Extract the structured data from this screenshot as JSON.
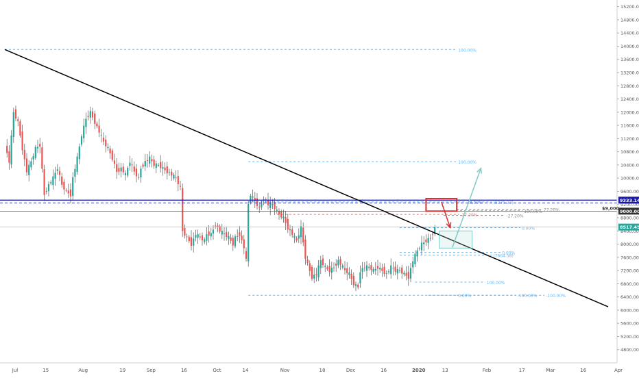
{
  "chart_data": {
    "type": "candlestick",
    "title": "",
    "xlabel": "",
    "ylabel": "",
    "ylim": [
      4400,
      15400
    ],
    "grid": false,
    "y_ticks": [
      "4800.00",
      "5200.00",
      "5600.00",
      "6000.00",
      "6400.00",
      "6800.00",
      "7200.00",
      "7600.00",
      "8000.00",
      "8400.00",
      "8800.00",
      "9200.00",
      "9600.00",
      "10000.00",
      "10400.00",
      "10800.00",
      "11200.00",
      "11600.00",
      "12000.00",
      "12400.00",
      "12800.00",
      "13200.00",
      "13600.00",
      "14000.00",
      "14400.00",
      "14800.00",
      "15200.00"
    ],
    "x_ticks": [
      {
        "label": "Jul",
        "day": 0
      },
      {
        "label": "15",
        "day": 14
      },
      {
        "label": "Aug",
        "day": 31
      },
      {
        "label": "19",
        "day": 49
      },
      {
        "label": "Sep",
        "day": 62
      },
      {
        "label": "16",
        "day": 77
      },
      {
        "label": "Oct",
        "day": 92
      },
      {
        "label": "14",
        "day": 105
      },
      {
        "label": "Nov",
        "day": 123
      },
      {
        "label": "18",
        "day": 140
      },
      {
        "label": "Dec",
        "day": 153
      },
      {
        "label": "16",
        "day": 168
      },
      {
        "label": "2020",
        "day": 184
      },
      {
        "label": "13",
        "day": 196
      },
      {
        "label": "Feb",
        "day": 215
      },
      {
        "label": "17",
        "day": 231
      },
      {
        "label": "Mar",
        "day": 244
      },
      {
        "label": "16",
        "day": 259
      },
      {
        "label": "Apr",
        "day": 275
      }
    ],
    "price_scale": {
      "badges": [
        {
          "label": "9333.14",
          "value": 9333,
          "color": "#1a1aa6"
        },
        {
          "label": "9000.00",
          "value": 9000,
          "color": "#333333"
        },
        {
          "label": "8517.45",
          "value": 8517,
          "color": "#26a69a"
        }
      ],
      "ref_label": "$9,000"
    },
    "closes": [
      [
        0,
        11000
      ],
      [
        2,
        10500
      ],
      [
        4,
        12000
      ],
      [
        6,
        11700
      ],
      [
        8,
        10900
      ],
      [
        10,
        10200
      ],
      [
        12,
        10500
      ],
      [
        14,
        10900
      ],
      [
        16,
        11000
      ],
      [
        18,
        9500
      ],
      [
        20,
        9800
      ],
      [
        22,
        10000
      ],
      [
        24,
        10300
      ],
      [
        26,
        9800
      ],
      [
        28,
        9600
      ],
      [
        30,
        9500
      ],
      [
        31,
        10000
      ],
      [
        33,
        10600
      ],
      [
        35,
        11300
      ],
      [
        37,
        11800
      ],
      [
        39,
        12000
      ],
      [
        41,
        11700
      ],
      [
        43,
        11400
      ],
      [
        45,
        11100
      ],
      [
        47,
        10900
      ],
      [
        49,
        10600
      ],
      [
        51,
        10200
      ],
      [
        53,
        10300
      ],
      [
        55,
        10100
      ],
      [
        57,
        10500
      ],
      [
        59,
        10200
      ],
      [
        61,
        10000
      ],
      [
        62,
        10300
      ],
      [
        64,
        10500
      ],
      [
        66,
        10600
      ],
      [
        68,
        10400
      ],
      [
        70,
        10400
      ],
      [
        72,
        10300
      ],
      [
        74,
        10200
      ],
      [
        76,
        10100
      ],
      [
        78,
        10000
      ],
      [
        80,
        9700
      ],
      [
        81,
        8400
      ],
      [
        83,
        8200
      ],
      [
        85,
        8000
      ],
      [
        87,
        8300
      ],
      [
        89,
        8200
      ],
      [
        91,
        8100
      ],
      [
        92,
        8300
      ],
      [
        94,
        8300
      ],
      [
        96,
        8600
      ],
      [
        98,
        8400
      ],
      [
        100,
        8300
      ],
      [
        102,
        8200
      ],
      [
        104,
        8000
      ],
      [
        105,
        8200
      ],
      [
        107,
        8300
      ],
      [
        109,
        7900
      ],
      [
        110,
        7500
      ],
      [
        111,
        9200
      ],
      [
        112,
        9500
      ],
      [
        114,
        9300
      ],
      [
        116,
        9100
      ],
      [
        118,
        9400
      ],
      [
        120,
        9200
      ],
      [
        122,
        9200
      ],
      [
        123,
        9100
      ],
      [
        125,
        8900
      ],
      [
        127,
        8800
      ],
      [
        129,
        8500
      ],
      [
        131,
        8300
      ],
      [
        133,
        8100
      ],
      [
        135,
        8500
      ],
      [
        137,
        7600
      ],
      [
        139,
        7200
      ],
      [
        140,
        7000
      ],
      [
        142,
        7100
      ],
      [
        144,
        7500
      ],
      [
        146,
        7300
      ],
      [
        148,
        7200
      ],
      [
        150,
        7300
      ],
      [
        152,
        7500
      ],
      [
        153,
        7400
      ],
      [
        155,
        7200
      ],
      [
        157,
        7100
      ],
      [
        159,
        6800
      ],
      [
        161,
        6700
      ],
      [
        162,
        7200
      ],
      [
        164,
        7300
      ],
      [
        166,
        7300
      ],
      [
        168,
        7200
      ],
      [
        170,
        7300
      ],
      [
        172,
        7200
      ],
      [
        174,
        7100
      ],
      [
        176,
        7300
      ],
      [
        178,
        7200
      ],
      [
        180,
        7200
      ],
      [
        182,
        7100
      ],
      [
        184,
        7000
      ],
      [
        186,
        7500
      ],
      [
        188,
        7800
      ],
      [
        190,
        8000
      ],
      [
        192,
        8100
      ],
      [
        194,
        8200
      ],
      [
        196,
        8500
      ]
    ],
    "fibs": [
      {
        "label": "100.00%",
        "value": 13900,
        "d1": 0,
        "d2": 206,
        "color": "#64b5f6"
      },
      {
        "label": "100.00%",
        "value": 10500,
        "d1": 111,
        "d2": 206,
        "color": "#64b5f6"
      },
      {
        "label": "0.00%",
        "value": 8500,
        "d1": 180,
        "d2": 235,
        "color": "#64b5f6"
      },
      {
        "label": "0.00%",
        "value": 7750,
        "d1": 180,
        "d2": 226,
        "color": "#64b5f6"
      },
      {
        "label": "100.00%",
        "value": 6850,
        "d1": 187,
        "d2": 219,
        "color": "#64b5f6"
      },
      {
        "label": "0.00%",
        "value": 6450,
        "d1": 111,
        "d2": 206,
        "color": "#64b5f6"
      },
      {
        "label": "-100.00%",
        "value": 6450,
        "d1": 193,
        "d2": 233,
        "color": "#64b5f6"
      },
      {
        "label": "-100.00%",
        "value": 6450,
        "d1": 206,
        "d2": 246,
        "color": "#64b5f6"
      },
      {
        "label": "38.20%",
        "value": 9279,
        "d1": 111,
        "d2": 210,
        "color": "#64b5f6"
      },
      {
        "label": "(9279.27)",
        "value": 9279,
        "d1": 212,
        "d2": 222,
        "color": "#64b5f6"
      },
      {
        "label": "27.20%",
        "value": 9060,
        "d1": 206,
        "d2": 245,
        "color": "#888888"
      },
      {
        "label": "100.00%",
        "value": 9010,
        "d1": 200,
        "d2": 236,
        "color": "#888888"
      },
      {
        "label": "-27.20%",
        "value": 8870,
        "d1": 200,
        "d2": 228,
        "color": "#888888"
      },
      {
        "label": "-27.20%",
        "value": 8900,
        "d1": 124,
        "d2": 207,
        "color": "#e57373"
      },
      {
        "label": "(7664.58)",
        "value": 7664,
        "d1": 180,
        "d2": 222,
        "color": "#64b5f6"
      }
    ],
    "trendline": {
      "d1": 0,
      "v1": 13900,
      "d2": 275,
      "v2": 6100
    },
    "support_line": {
      "value": 9333
    },
    "target_box": {
      "d1": 192,
      "d2": 206,
      "v1": 9380,
      "v2": 9000
    },
    "entry_box": {
      "d1": 198,
      "d2": 213,
      "v1": 8400,
      "v2": 7880
    },
    "red_arrow": {
      "d1": 199,
      "v1": 9280,
      "d2": 203,
      "v2": 8500
    },
    "green_arrow": {
      "d1": 204,
      "v1": 7900,
      "d2": 217,
      "v2": 10300
    }
  }
}
